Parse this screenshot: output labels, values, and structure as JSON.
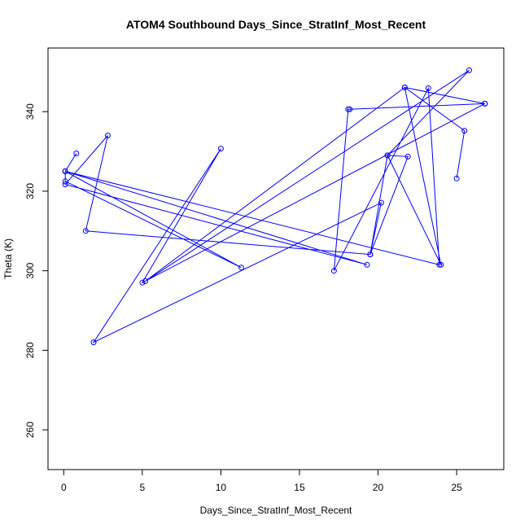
{
  "chart_data": {
    "type": "line",
    "title": "ATOM4 Southbound Days_Since_StratInf_Most_Recent",
    "xlabel": "Days_Since_StratInf_Most_Recent",
    "ylabel": "Theta (K)",
    "xlim": [
      -1,
      28
    ],
    "ylim": [
      250,
      356
    ],
    "xticks": [
      0,
      5,
      10,
      15,
      20,
      25
    ],
    "yticks": [
      260,
      280,
      300,
      320,
      340
    ],
    "grid": false,
    "color": "#0000ff",
    "markers": "open-circle",
    "series": [
      {
        "x": [
          25.0,
          25.5,
          21.7,
          24.0,
          20.6,
          21.9,
          19.5,
          20.2,
          1.9,
          10.0,
          5.0,
          26.8,
          18.1,
          17.2,
          23.2,
          23.9,
          0.1,
          0.8,
          0.1,
          0.1,
          11.3,
          0.1,
          19.3,
          0.1,
          2.8,
          1.4,
          19.5,
          20.6,
          25.8,
          5.2,
          21.7,
          26.8,
          18.2
        ],
        "y": [
          323.2,
          335.2,
          346.1,
          301.5,
          329.0,
          328.7,
          304.1,
          317.1,
          282.0,
          330.7,
          297.0,
          342.0,
          340.6,
          300.0,
          345.9,
          301.5,
          325.0,
          329.5,
          325.0,
          322.5,
          300.8,
          325.0,
          301.5,
          321.7,
          334.0,
          310.0,
          304.1,
          329.0,
          350.4,
          297.4,
          346.1,
          342.0,
          340.6
        ]
      }
    ]
  }
}
